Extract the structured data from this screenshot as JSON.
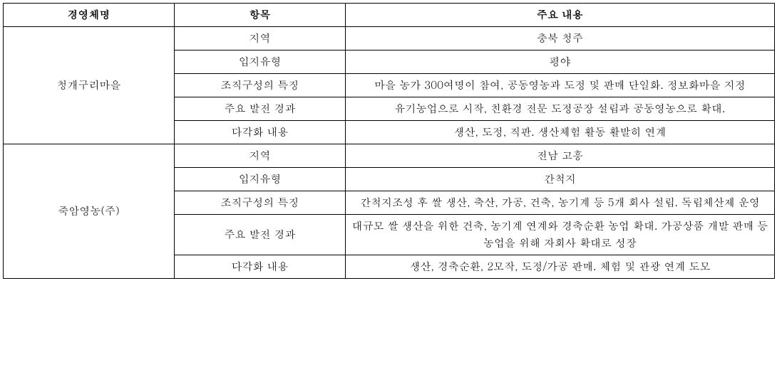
{
  "headers": {
    "name": "경영체명",
    "item": "항목",
    "content": "주요 내용"
  },
  "groups": [
    {
      "name": "청개구리마을",
      "rows": [
        {
          "item": "지역",
          "content": "충북 청주"
        },
        {
          "item": "입지유형",
          "content": "평야"
        },
        {
          "item": "조직구성의 특징",
          "content": "마을 농가 300여명이 참여, 공동영농과 도정 및 판매 단일화. 정보화마을 지정"
        },
        {
          "item": "주요 발전 경과",
          "content": "유기농업으로 시작, 친환경 전문 도정공장 설립과 공동영농으로 확대."
        },
        {
          "item": "다각화 내용",
          "content": "생산, 도정, 직판. 생산체험 활동 활발히 연계"
        }
      ]
    },
    {
      "name": "죽암영농(주)",
      "rows": [
        {
          "item": "지역",
          "content": "전남 고흥"
        },
        {
          "item": "입지유형",
          "content": "간척지"
        },
        {
          "item": "조직구성의 특징",
          "content": "간척지조성 후 쌀 생산, 축산, 가공, 건축, 농기계 등 5개 회사 설립. 독립체산제 운영"
        },
        {
          "item": "주요 발전 경과",
          "content": "대규모 쌀 생산을 위한 건축, 농기계 연계와 경축순환 농업 확대. 가공상품 개발 판매 등 농업을 위해 자회사 확대로 성장"
        },
        {
          "item": "다각화 내용",
          "content": "생산, 경축순환, 2모작, 도정/가공 판매. 체험 및 관광 연계 도모"
        }
      ]
    }
  ]
}
